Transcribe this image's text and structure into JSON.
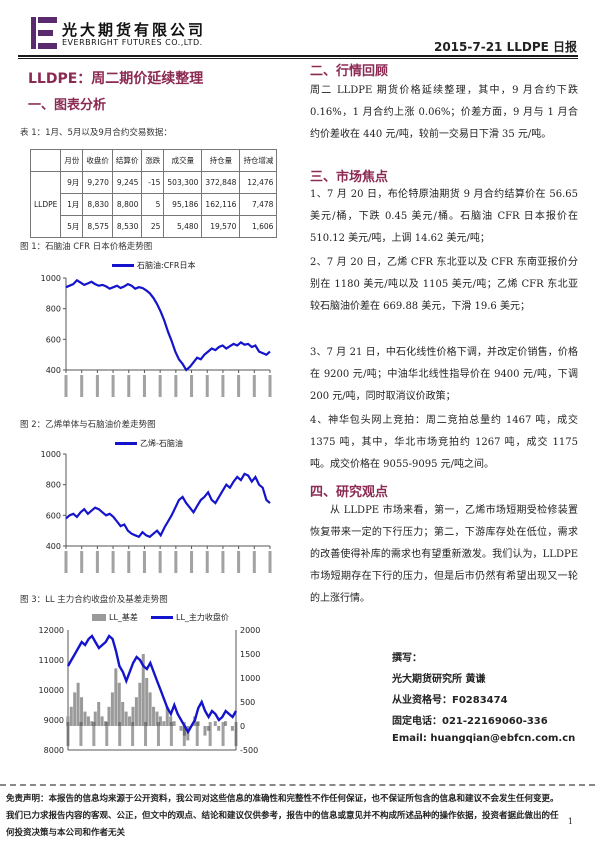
{
  "header": {
    "company_cn": "光大期货有限公司",
    "company_en": "EVERBRIGHT FUTURES CO.,LTD.",
    "report_tag": "2015-7-21    LLDPE 日报"
  },
  "title": "LLDPE：周二期价延续整理",
  "sections": {
    "s1": "一、图表分析",
    "s2": "二、行情回顾",
    "s3": "三、市场焦点",
    "s4": "四、研究观点"
  },
  "table1": {
    "caption": "表 1：1月、5月以及9月合约交易数据：",
    "headers": [
      "",
      "月份",
      "收盘价",
      "结算价",
      "涨跌",
      "成交量",
      "持仓量",
      "持仓增减"
    ],
    "row_group": "LLDPE",
    "rows": [
      [
        "9月",
        "9,270",
        "9,245",
        "-15",
        "503,300",
        "372,848",
        "12,476"
      ],
      [
        "1月",
        "8,830",
        "8,800",
        "5",
        "95,186",
        "162,116",
        "7,478"
      ],
      [
        "5月",
        "8,575",
        "8,530",
        "25",
        "5,480",
        "19,570",
        "1,606"
      ]
    ]
  },
  "fig1": {
    "caption": "图 1：石脑油 CFR 日本价格走势图",
    "legend": "石脑油:CFR日本"
  },
  "fig2": {
    "caption": "图 2：乙烯单体与石脑油价差走势图",
    "legend": "乙烯-石脑油"
  },
  "fig3": {
    "caption": "图 3：LL 主力合约收盘价及基差走势图",
    "legend_a": "LL_基差",
    "legend_b": "LL_主力收盘价"
  },
  "chart_data": [
    {
      "type": "line",
      "series": [
        {
          "name": "石脑油:CFR日本",
          "values": [
            940,
            950,
            960,
            985,
            970,
            955,
            965,
            975,
            960,
            950,
            955,
            945,
            930,
            940,
            950,
            935,
            945,
            960,
            950,
            930,
            940,
            935,
            920,
            900,
            870,
            830,
            780,
            720,
            650,
            590,
            520,
            470,
            440,
            400,
            420,
            450,
            480,
            470,
            500,
            520,
            540,
            530,
            550,
            560,
            540,
            555,
            570,
            560,
            580,
            565,
            570,
            550,
            560,
            520,
            510,
            500,
            520
          ]
        }
      ],
      "ylim": [
        400,
        1000
      ],
      "yticks": [
        400,
        600,
        800,
        1000
      ]
    },
    {
      "type": "line",
      "series": [
        {
          "name": "乙烯-石脑油",
          "values": [
            580,
            600,
            610,
            590,
            620,
            640,
            610,
            630,
            650,
            640,
            620,
            600,
            610,
            590,
            560,
            530,
            540,
            500,
            480,
            470,
            460,
            490,
            470,
            460,
            480,
            500,
            470,
            520,
            560,
            600,
            650,
            700,
            720,
            680,
            650,
            620,
            660,
            700,
            720,
            750,
            700,
            680,
            720,
            760,
            800,
            780,
            820,
            850,
            830,
            870,
            860,
            820,
            850,
            800,
            780,
            700,
            680
          ]
        }
      ],
      "ylim": [
        400,
        1000
      ],
      "yticks": [
        400,
        600,
        800,
        1000
      ]
    },
    {
      "type": "line",
      "series": [
        {
          "name": "LL_主力收盘价",
          "values": [
            10800,
            11000,
            11200,
            11400,
            11600,
            11500,
            11700,
            11800,
            11600,
            11400,
            11500,
            11600,
            11800,
            11700,
            11300,
            10800,
            10600,
            10300,
            10600,
            10900,
            11100,
            11000,
            10800,
            10700,
            10900,
            10600,
            10300,
            10000,
            9700,
            9400,
            9200,
            9500,
            9200,
            9000,
            8800,
            8600,
            8800,
            9000,
            9400,
            9600,
            9300,
            9100,
            9300,
            9200,
            9000,
            9100,
            9300,
            9200,
            9100,
            9300
          ]
        },
        {
          "name": "LL_基差",
          "values": [
            200,
            400,
            700,
            900,
            600,
            300,
            200,
            100,
            300,
            500,
            200,
            100,
            400,
            700,
            1200,
            900,
            500,
            300,
            200,
            400,
            600,
            900,
            1500,
            1000,
            700,
            400,
            300,
            200,
            100,
            400,
            200,
            100,
            0,
            -100,
            -200,
            -300,
            0,
            200,
            100,
            0,
            -200,
            -100,
            0,
            100,
            -100,
            0,
            100,
            0,
            -100,
            0
          ]
        }
      ],
      "ylim_left": [
        8000,
        12000
      ],
      "yticks_left": [
        8000,
        9000,
        10000,
        11000,
        12000
      ],
      "ylim_right": [
        -500,
        2000
      ],
      "yticks_right": [
        -500,
        0,
        500,
        1000,
        1500,
        2000
      ]
    }
  ],
  "review": {
    "p1": "周二 LLDPE 期货价格延续整理，其中，9 月合约下跌 0.16%，1 月合约上涨 0.06%；价差方面，9 月与 1 月合约价差收在 440 元/吨，较前一交易日下滑 35 元/吨。"
  },
  "focus": {
    "p1": "1、7 月 20 日，布伦特原油期货 9 月合约结算价在 56.65 美元/桶，下跌 0.45 美元/桶。石脑油 CFR 日本报价在 510.12 美元/吨，上调 14.62 美元/吨；",
    "p2": "2、7 月 20 日，乙烯 CFR 东北亚以及 CFR 东南亚报价分别在 1180 美元/吨以及 1105 美元/吨；乙烯 CFR 东北亚较石脑油价差在 669.88 美元，下滑 19.6 美元；",
    "p3": "3、7 月 21 日，中石化线性价格下调，并改定价销售，价格在 9200 元/吨；中油华北线性指导价在 9400 元/吨，下调 200 元/吨，同时取消议价政策；",
    "p4": "4、神华包头网上竞拍：周二竞拍总量约 1467 吨，成交 1375 吨，其中，华北市场竞拍约 1267 吨，成交 1175 吨。成交价格在 9055-9095 元/吨之间。"
  },
  "view": {
    "p1": "从 LLDPE 市场来看，第一，乙烯市场短期受检修装置恢复带来一定的下行压力；第二，下游库存处在低位，需求的改善使得补库的需求也有望重新激发。我们认为，LLDPE 市场短期存在下行的压力，但是后市仍然有希望出现又一轮的上涨行情。"
  },
  "author": {
    "label": "撰写：",
    "org_name": "光大期货研究所    黄谦",
    "cert": "从业资格号：F0283474",
    "tel": "固定电话：021-22169060-336",
    "email": "Email:  huangqian@ebfcn.com.cn"
  },
  "disclaimer": "免责声明：本报告的信息均来源于公开资料，我公司对这些信息的准确性和完整性不作任何保证，也不保证所包含的信息和建议不会发生任何变更。我们已力求报告内容的客观、公正，但文中的观点、结论和建议仅供参考，报告中的信息或意见并不构成所述品种的操作依据，投资者据此做出的任何投资决策与本公司和作者无关",
  "page_number": "1",
  "colors": {
    "accent": "#8b2a52",
    "line": "#1414cc",
    "basis": "#9a9a9a"
  }
}
